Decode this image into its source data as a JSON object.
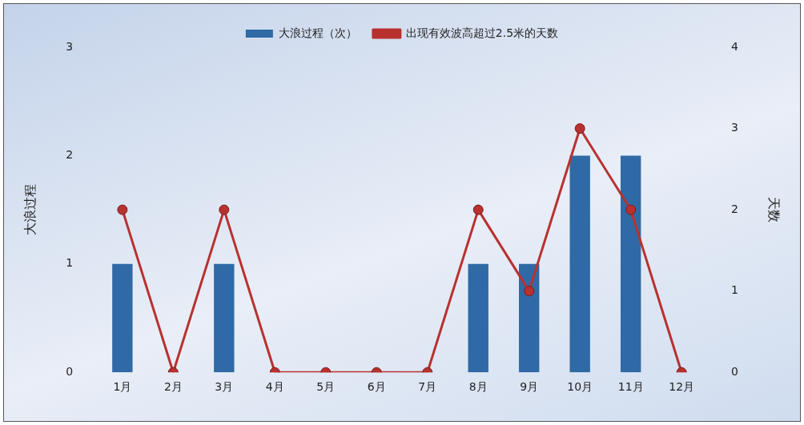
{
  "chart_data": {
    "type": "bar",
    "categories": [
      "1月",
      "2月",
      "3月",
      "4月",
      "5月",
      "6月",
      "7月",
      "8月",
      "9月",
      "10月",
      "11月",
      "12月"
    ],
    "series": [
      {
        "name": "大浪过程（次）",
        "color": "#2f6aa6",
        "values": [
          1,
          0,
          1,
          0,
          0,
          0,
          0,
          1,
          1,
          2,
          2,
          0
        ]
      },
      {
        "name": "出现有效波高超过2.5米的天数",
        "type": "line",
        "axis": "y2",
        "color": "#b8312f",
        "values": [
          2,
          0,
          2,
          0,
          0,
          0,
          0,
          2,
          1,
          3,
          2,
          0
        ]
      }
    ],
    "ylabel": "大浪过程",
    "y2label": "天数",
    "ylim": [
      0,
      3
    ],
    "yticks": [
      0,
      1,
      2,
      3
    ],
    "y2lim": [
      0,
      4
    ],
    "y2ticks": [
      0,
      1,
      2,
      3,
      4
    ],
    "grid": false,
    "legend": "top",
    "marker": "circle",
    "line_style": "solid"
  }
}
